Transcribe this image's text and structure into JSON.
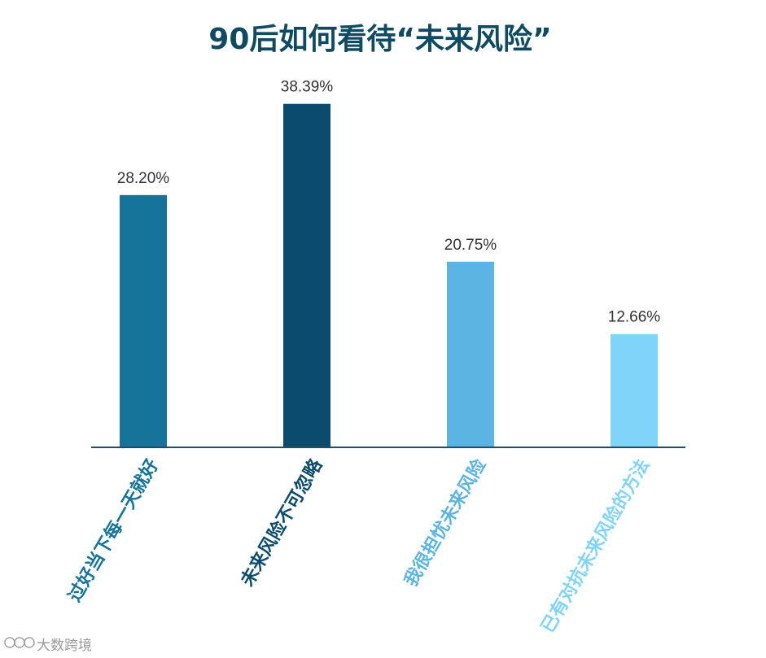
{
  "chart_data": {
    "type": "bar",
    "title": "90后如何看待“未来风险”",
    "categories": [
      "过好当下每一天就好",
      "未来风险不可忽略",
      "我很担忧未来风险",
      "已有对抗未来风险的方法"
    ],
    "values": [
      28.2,
      38.39,
      20.75,
      12.66
    ],
    "value_labels": [
      "28.20%",
      "38.39%",
      "20.75%",
      "12.66%"
    ],
    "unit": "%",
    "ylim": [
      0,
      40
    ],
    "grid": false,
    "legend": "none",
    "colors": [
      "#167399",
      "#0b4c6e",
      "#5cb4e2",
      "#80d4fa"
    ]
  },
  "watermark": {
    "text": "大数跨境"
  },
  "colors": {
    "title": "#0f4a63",
    "axis": "#1d4f66",
    "value_label": "#333333",
    "watermark": "#9a9a9a"
  }
}
